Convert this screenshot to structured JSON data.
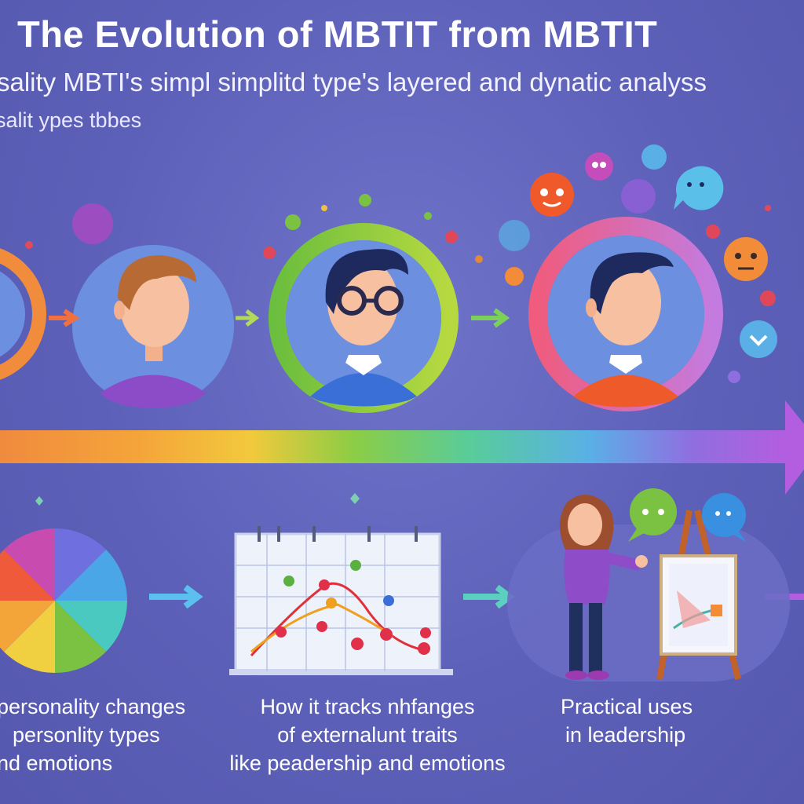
{
  "title": "The Evolution of MBTIT from MBTIT",
  "subtitle": "sality MBTI's simpl simplitd type's layered and dynatic analyss",
  "subtitle2": "salit ypes tbbes",
  "captions": {
    "col1": [
      "personality changes",
      "personlity types",
      "nd emotions"
    ],
    "col2": [
      "How it tracks nhfanges",
      "of externalunt traits",
      "like peadership and emotions"
    ],
    "col3": [
      "Practical uses",
      "in leadership"
    ]
  },
  "colors": {
    "background": "#5d60b8",
    "orange": "#f28c38",
    "green": "#7cc242",
    "pink": "#e95a8c",
    "purple": "#b36ad8"
  },
  "icons": [
    "emoji-heart-eyes-icon",
    "emoji-sad-icon",
    "speech-bubble-icon",
    "easel-chart-icon",
    "color-wheel-icon",
    "calendar-chart-icon"
  ]
}
